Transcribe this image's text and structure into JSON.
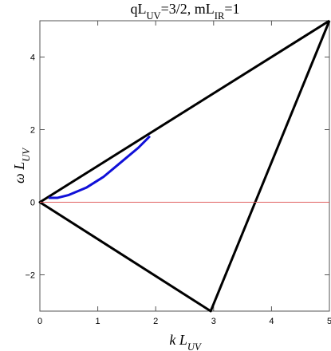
{
  "chart_data": {
    "type": "line",
    "title": [
      "qL",
      "UV",
      "=3/2,  mL",
      "IR",
      "=1"
    ],
    "xlabel": [
      "k L",
      "UV"
    ],
    "ylabel": [
      "ω L",
      "UV"
    ],
    "xlim": [
      0,
      5
    ],
    "ylim": [
      -3,
      5
    ],
    "xticks": [
      0,
      1,
      2,
      3,
      4,
      5
    ],
    "yticks": [
      {
        "value": -2,
        "label": "−2"
      },
      0,
      2,
      4
    ],
    "series": [
      {
        "color": "#000000",
        "x": [
          5,
          0,
          2.95,
          5
        ],
        "values": [
          5,
          0,
          -3,
          5
        ]
      },
      {
        "color": "#e06060",
        "x": [
          0,
          5
        ],
        "values": [
          0,
          0
        ]
      },
      {
        "color": "#1010d8",
        "x": [
          0.15,
          0.3,
          0.5,
          0.8,
          1.1,
          1.4,
          1.7,
          1.9
        ],
        "values": [
          0.12,
          0.12,
          0.2,
          0.4,
          0.7,
          1.1,
          1.5,
          1.82
        ]
      }
    ]
  }
}
